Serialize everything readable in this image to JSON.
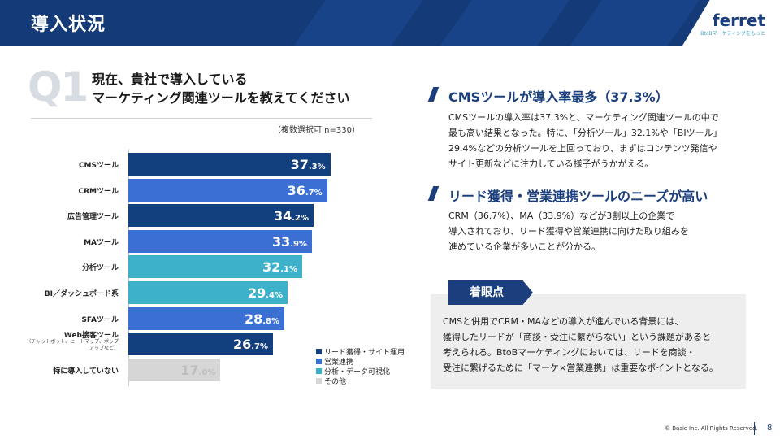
{
  "header": {
    "title": "導入状況"
  },
  "logo": {
    "name": "ferret",
    "tagline": "BtoBマーケティングをもっと"
  },
  "question": {
    "mark": "Q1",
    "line1": "現在、貴社で導入している",
    "line2": "マーケティング関連ツールを教えてください",
    "note": "（複数選択可  n=330）"
  },
  "chart_data": {
    "type": "bar",
    "orientation": "horizontal",
    "categories": [
      "CMSツール",
      "CRMツール",
      "広告管理ツール",
      "MAツール",
      "分析ツール",
      "BI／ダッシュボード系",
      "SFAツール",
      "Web接客ツール",
      "特に導入していない"
    ],
    "category_notes": [
      "",
      "",
      "",
      "",
      "",
      "",
      "",
      "（チャットボット、ヒートマップ、ポップアップなど）",
      ""
    ],
    "values": [
      37.3,
      36.7,
      34.2,
      33.9,
      32.1,
      29.4,
      28.8,
      26.7,
      17.0
    ],
    "value_labels": [
      {
        "int": "37",
        "dec": ".3%"
      },
      {
        "int": "36",
        "dec": ".7%"
      },
      {
        "int": "34",
        "dec": ".2%"
      },
      {
        "int": "33",
        "dec": ".9%"
      },
      {
        "int": "32",
        "dec": ".1%"
      },
      {
        "int": "29",
        "dec": ".4%"
      },
      {
        "int": "28",
        "dec": ".8%"
      },
      {
        "int": "26",
        "dec": ".7%"
      },
      {
        "int": "17",
        "dec": ".0%"
      }
    ],
    "groups": [
      0,
      1,
      0,
      1,
      2,
      2,
      1,
      0,
      3
    ],
    "xlim": [
      0,
      45
    ],
    "legend": [
      {
        "label": "リード獲得・サイト運用",
        "color": "#123f7e"
      },
      {
        "label": "営業連携",
        "color": "#3b6fd4"
      },
      {
        "label": "分析・データ可視化",
        "color": "#3db1c9"
      },
      {
        "label": "その他",
        "color": "#d6d6d6"
      }
    ],
    "legend_position": "bottom-right"
  },
  "sections": [
    {
      "title": "CMSツールが導入率最多（37.3%）",
      "lines": [
        "CMSツールの導入率は37.3%と、マーケティング関連ツールの中で",
        "最も高い結果となった。特に、「分析ツール」32.1%や「BIツール」",
        "29.4%などの分析ツールを上回っており、まずはコンテンツ発信や",
        "サイト更新などに注力している様子がうかがえる。"
      ]
    },
    {
      "title": "リード獲得・営業連携ツールのニーズが高い",
      "lines": [
        "CRM（36.7%）、MA（33.9%）などが3割以上の企業で",
        "導入されており、リード獲得や営業連携に向けた取り組みを",
        "進めている企業が多いことが分かる。"
      ]
    }
  ],
  "point": {
    "tag": "着眼点",
    "lines": [
      "CMSと併用でCRM・MAなどの導入が進んでいる背景には、",
      "獲得したリードが「商談・受注に繋がらない」という課題があると",
      "考えられる。BtoBマーケティングにおいては、リードを商談・",
      "受注に繋げるために「マーケ×営業連携」は重要なポイントとなる。"
    ]
  },
  "footer": {
    "copyright": "© Basic Inc. All Rights Reserved.",
    "page": "8"
  }
}
